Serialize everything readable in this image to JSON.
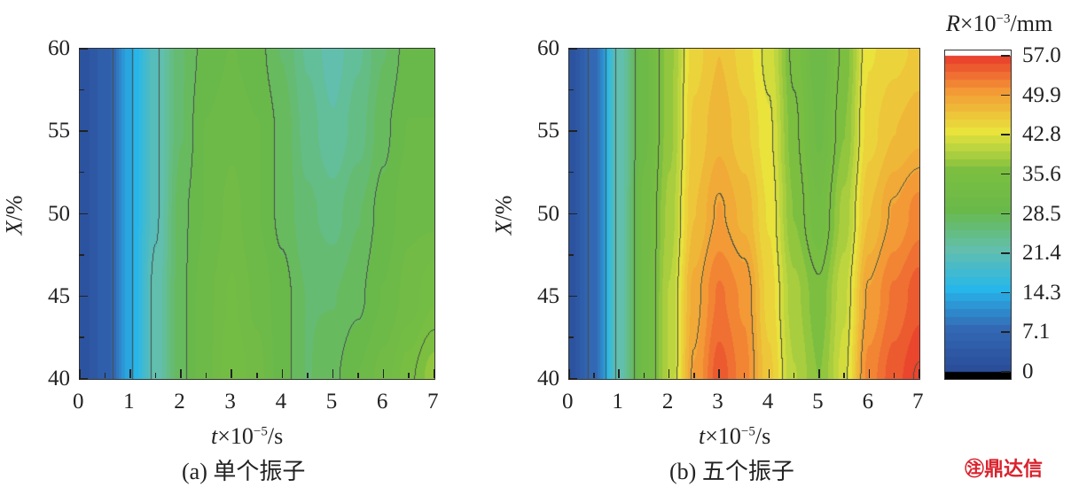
{
  "chart_data": [
    {
      "type": "heatmap",
      "panel": "a",
      "caption": "(a) 单个振子",
      "xlabel_var": "t",
      "xlabel_unit": "×10",
      "xlabel_exp": "−5",
      "xlabel_tail": "/s",
      "ylabel_var": "X",
      "ylabel_tail": "/%",
      "xlim": [
        0,
        7
      ],
      "ylim": [
        40,
        60
      ],
      "xticks": [
        "0",
        "1",
        "2",
        "3",
        "4",
        "5",
        "6",
        "7"
      ],
      "yticks": [
        "40",
        "45",
        "50",
        "55",
        "60"
      ],
      "grid_t": [
        0,
        0.5,
        1,
        1.5,
        2,
        2.5,
        3,
        3.5,
        4,
        4.5,
        5,
        5.5,
        6,
        6.5,
        7
      ],
      "grid_X": [
        40,
        45,
        50,
        55,
        60
      ],
      "values": [
        [
          2,
          5,
          14,
          22,
          28,
          31,
          34,
          32,
          29,
          27,
          28,
          30,
          32,
          35,
          38
        ],
        [
          2,
          5,
          14,
          22,
          28,
          31,
          33,
          31,
          29,
          27,
          27,
          28,
          30,
          32,
          34
        ],
        [
          2,
          5,
          14,
          21,
          28,
          30,
          32,
          30,
          28,
          26,
          25,
          27,
          29,
          31,
          31
        ],
        [
          2,
          5,
          14,
          21,
          27,
          30,
          31,
          30,
          28,
          25,
          23,
          25,
          28,
          30,
          30
        ],
        [
          2,
          5,
          14,
          21,
          27,
          29,
          30,
          29,
          27,
          24,
          22,
          24,
          27,
          29,
          29
        ]
      ]
    },
    {
      "type": "heatmap",
      "panel": "b",
      "caption": "(b) 五个振子",
      "xlabel_var": "t",
      "xlabel_unit": "×10",
      "xlabel_exp": "−5",
      "xlabel_tail": "/s",
      "ylabel_var": "X",
      "ylabel_tail": "/%",
      "xlim": [
        0,
        7
      ],
      "ylim": [
        40,
        60
      ],
      "xticks": [
        "0",
        "1",
        "2",
        "3",
        "4",
        "5",
        "6",
        "7"
      ],
      "yticks": [
        "40",
        "45",
        "50",
        "55",
        "60"
      ],
      "grid_t": [
        0,
        0.5,
        1,
        1.5,
        2,
        2.5,
        3,
        3.5,
        4,
        4.5,
        5,
        5.5,
        6,
        6.5,
        7
      ],
      "grid_X": [
        40,
        45,
        50,
        55,
        60
      ],
      "values": [
        [
          2,
          8,
          22,
          32,
          40,
          50,
          55,
          52,
          46,
          40,
          37,
          42,
          52,
          55,
          57
        ],
        [
          2,
          8,
          22,
          32,
          40,
          49,
          53,
          51,
          45,
          39,
          36,
          41,
          50,
          53,
          55
        ],
        [
          2,
          8,
          22,
          32,
          39,
          47,
          50,
          48,
          44,
          37,
          33,
          39,
          47,
          50,
          52
        ],
        [
          2,
          8,
          22,
          31,
          38,
          46,
          48,
          46,
          43,
          36,
          31,
          37,
          45,
          47,
          48
        ],
        [
          2,
          8,
          22,
          31,
          38,
          45,
          47,
          45,
          42,
          35,
          30,
          36,
          44,
          45,
          46
        ]
      ]
    }
  ],
  "colorbar": {
    "title_var": "R",
    "title_unit": "×10",
    "title_exp": "−3",
    "title_tail": "/mm",
    "range": [
      0,
      57
    ],
    "ticks": [
      "57.0",
      "49.9",
      "42.8",
      "35.6",
      "28.5",
      "21.4",
      "14.3",
      "7.1",
      "0"
    ],
    "colors": [
      "#2a4e9a",
      "#3368b4",
      "#27b6ea",
      "#62bfae",
      "#69b94a",
      "#7cbf40",
      "#e9e33c",
      "#f39a36",
      "#e8302b"
    ]
  },
  "watermark": "鼎达信"
}
